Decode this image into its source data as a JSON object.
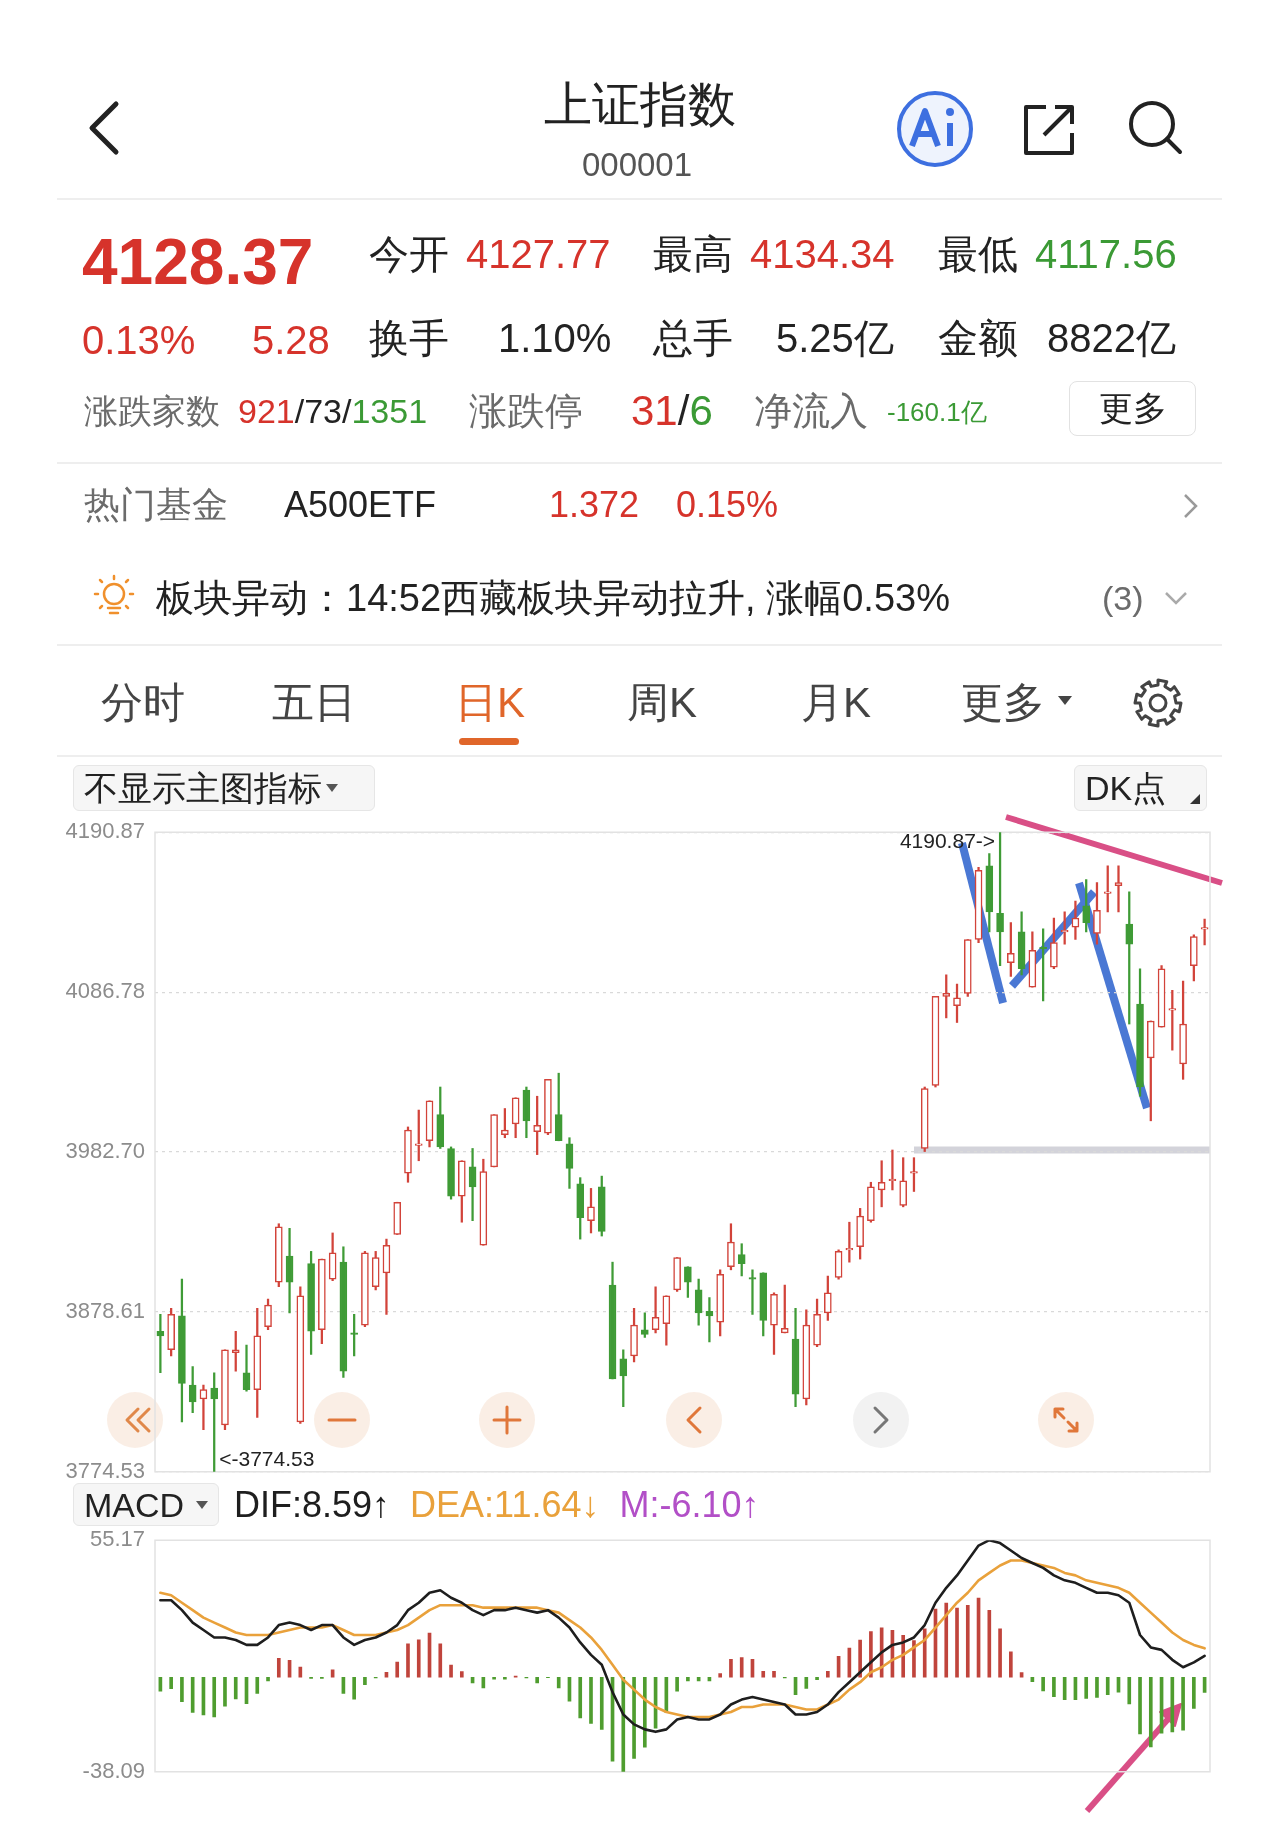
{
  "chart_data": [
    {
      "type": "other",
      "title": "上证指数",
      "subtitle": "000001",
      "annotations": [
        "4128.37",
        "0.13%",
        "5.28",
        "今开",
        "4127.77",
        "最高",
        "4134.34",
        "最低",
        "4117.56",
        "换手",
        "1.10%",
        "总手",
        "5.25亿",
        "金额",
        "8822亿",
        "涨跌家数",
        "921",
        "/73/",
        "1351",
        "涨跌停",
        "31",
        "/",
        "6",
        "净流入",
        "-160.1亿",
        "更多",
        "热门基金",
        "A500ETF",
        "1.372",
        "0.15%",
        "板块异动：14:52西藏板块异动拉升, 涨幅0.53%",
        "(3)",
        "分时",
        "五日",
        "日K",
        "周K",
        "月K",
        "更多"
      ]
    },
    {
      "type": "candlestick",
      "annotations": [
        "不显示主图指标",
        "DK点",
        "4190.87->",
        "<-3774.53"
      ],
      "categories": [
        null,
        null,
        null,
        null,
        null,
        null,
        null,
        null,
        null,
        null,
        null,
        null,
        null,
        null,
        null,
        null,
        null,
        null,
        null,
        null,
        null,
        null,
        null,
        null,
        null,
        null,
        null,
        null,
        null,
        null,
        null,
        null,
        null,
        null,
        null,
        null,
        null,
        null,
        null,
        null,
        null,
        null,
        null,
        null,
        null,
        null,
        null,
        null,
        null,
        null,
        null,
        null,
        null,
        null,
        null,
        null,
        null,
        null,
        null,
        null,
        null,
        null,
        null,
        null,
        null,
        null,
        null,
        null,
        null,
        null,
        null,
        null,
        null,
        null,
        null,
        null,
        null,
        null,
        null,
        null,
        null,
        null,
        null,
        null,
        null,
        null,
        null,
        null,
        null,
        null,
        null,
        null,
        null,
        null,
        null,
        null,
        null,
        null
      ],
      "ohlc": [
        [
          3866,
          3877,
          3839,
          3863
        ],
        [
          3854,
          3881,
          3850,
          3877
        ],
        [
          3876,
          3900,
          3807,
          3832
        ],
        [
          3831,
          3843,
          3813,
          3820
        ],
        [
          3822,
          3831,
          3802,
          3828
        ],
        [
          3829,
          3839,
          3774.53,
          3822
        ],
        [
          3805,
          3854,
          3802,
          3854
        ],
        [
          3852,
          3866,
          3840,
          3854
        ],
        [
          3839,
          3857,
          3827,
          3828
        ],
        [
          3828,
          3881,
          3810,
          3863
        ],
        [
          3869,
          3887,
          3867,
          3883
        ],
        [
          3898,
          3936,
          3895,
          3934
        ],
        [
          3915,
          3933,
          3878,
          3898
        ],
        [
          3807,
          3895,
          3806,
          3889
        ],
        [
          3910,
          3918,
          3851,
          3866
        ],
        [
          3867,
          3913,
          3858,
          3913
        ],
        [
          3900,
          3930,
          3899,
          3917
        ],
        [
          3911,
          3921,
          3836,
          3840
        ],
        [
          3865,
          3877,
          3850,
          3864
        ],
        [
          3870,
          3918,
          3869,
          3917
        ],
        [
          3895,
          3918,
          3893,
          3914
        ],
        [
          3904,
          3926,
          3877,
          3922
        ],
        [
          3929,
          3950,
          3929,
          3950
        ],
        [
          3969,
          3999,
          3963,
          3997
        ],
        [
          3987,
          4010,
          3977,
          3988
        ],
        [
          3990,
          4016,
          3986,
          4016
        ],
        [
          4007,
          4025,
          3985,
          3986
        ],
        [
          3985,
          3986,
          3952,
          3954
        ],
        [
          3954,
          3977,
          3937,
          3977
        ],
        [
          3973,
          3985,
          3938,
          3960
        ],
        [
          3922,
          3978,
          3922,
          3970
        ],
        [
          3973,
          4007,
          3973,
          4007
        ],
        [
          3994,
          4011,
          3992,
          3997
        ],
        [
          4001,
          4018,
          3992,
          4018
        ],
        [
          4023,
          4025,
          3992,
          4003
        ],
        [
          3996,
          4019,
          3981,
          4000
        ],
        [
          3995,
          4030,
          3994,
          4030
        ],
        [
          4007,
          4034,
          3990,
          3990
        ],
        [
          3988,
          3992,
          3959,
          3972
        ],
        [
          3962,
          3966,
          3926,
          3940
        ],
        [
          3938,
          3959,
          3930,
          3947
        ],
        [
          3960,
          3967,
          3928,
          3931
        ],
        [
          3896,
          3911,
          3835,
          3835
        ],
        [
          3848,
          3854,
          3817,
          3837
        ],
        [
          3850,
          3881,
          3846,
          3870
        ],
        [
          3867,
          3878,
          3862,
          3864
        ],
        [
          3867,
          3895,
          3865,
          3875
        ],
        [
          3871,
          3889,
          3857,
          3889
        ],
        [
          3893,
          3914,
          3892,
          3914
        ],
        [
          3908,
          3908,
          3888,
          3898
        ],
        [
          3893,
          3900,
          3870,
          3878
        ],
        [
          3879,
          3888,
          3859,
          3876
        ],
        [
          3872,
          3906,
          3863,
          3903
        ],
        [
          3908,
          3936,
          3906,
          3924
        ],
        [
          3916,
          3923,
          3902,
          3910
        ],
        [
          3901,
          3906,
          3877,
          3900
        ],
        [
          3904,
          3904,
          3863,
          3873
        ],
        [
          3870,
          3891,
          3851,
          3890
        ],
        [
          3865,
          3896,
          3865,
          3868
        ],
        [
          3861,
          3881,
          3817,
          3825
        ],
        [
          3822,
          3880,
          3818,
          3870
        ],
        [
          3857,
          3887,
          3856,
          3877
        ],
        [
          3878,
          3902,
          3873,
          3891
        ],
        [
          3901,
          3919,
          3900,
          3918
        ],
        [
          3919,
          3937,
          3911,
          3920
        ],
        [
          3921,
          3946,
          3913,
          3941
        ],
        [
          3938,
          3963,
          3937,
          3960
        ],
        [
          3958,
          3977,
          3947,
          3963
        ],
        [
          3964,
          3984,
          3958,
          3965
        ],
        [
          3948,
          3979,
          3947,
          3964
        ],
        [
          3969,
          3979,
          3957,
          3970
        ],
        [
          3985,
          4025,
          3983,
          4024
        ],
        [
          4026,
          4084,
          4025,
          4084
        ],
        [
          4084,
          4098,
          4070,
          4086
        ],
        [
          4078,
          4092,
          4067,
          4083
        ],
        [
          4086,
          4121,
          4084,
          4121
        ],
        [
          4121,
          4168,
          4119,
          4166
        ],
        [
          4169,
          4177,
          4126,
          4139
        ],
        [
          4138,
          4190.87,
          4104,
          4126
        ],
        [
          4106,
          4132,
          4097,
          4112
        ],
        [
          4126,
          4139,
          4098,
          4102
        ],
        [
          4090,
          4126,
          4090,
          4114
        ],
        [
          4116,
          4128,
          4081,
          4115
        ],
        [
          4103,
          4135,
          4102,
          4119
        ],
        [
          4126,
          4139,
          4118,
          4127
        ],
        [
          4129,
          4146,
          4121,
          4135
        ],
        [
          4143,
          4160,
          4126,
          4132
        ],
        [
          4125,
          4158,
          4118,
          4140
        ],
        [
          4151,
          4169,
          4139,
          4152
        ],
        [
          4156,
          4169,
          4139,
          4158
        ],
        [
          4131,
          4152,
          4066,
          4118
        ],
        [
          4079,
          4102,
          4019,
          4025
        ],
        [
          4044,
          4068,
          4003,
          4068
        ],
        [
          4064,
          4104,
          4064,
          4102
        ],
        [
          4075,
          4088,
          4049,
          4076
        ],
        [
          4040,
          4094,
          4030,
          4066
        ],
        [
          4104,
          4124,
          4094,
          4123
        ],
        [
          4127.77,
          4134.34,
          4117.56,
          4128.37
        ]
      ],
      "colors": [
        "#3f9b36",
        "#d2433a",
        "#3f9b36",
        "#3f9b36",
        "#d2433a",
        "#3f9b36",
        "#d2433a",
        "#d2433a",
        "#3f9b36",
        "#d2433a",
        "#d2433a",
        "#d2433a",
        "#3f9b36",
        "#d2433a",
        "#3f9b36",
        "#d2433a",
        "#d2433a",
        "#3f9b36",
        "#3f9b36",
        "#d2433a",
        "#d2433a",
        "#d2433a",
        "#d2433a",
        "#d2433a",
        "#d2433a",
        "#d2433a",
        "#3f9b36",
        "#3f9b36",
        "#d2433a",
        "#3f9b36",
        "#d2433a",
        "#d2433a",
        "#d2433a",
        "#d2433a",
        "#3f9b36",
        "#d2433a",
        "#d2433a",
        "#3f9b36",
        "#3f9b36",
        "#3f9b36",
        "#d2433a",
        "#3f9b36",
        "#3f9b36",
        "#3f9b36",
        "#d2433a",
        "#3f9b36",
        "#d2433a",
        "#d2433a",
        "#d2433a",
        "#3f9b36",
        "#3f9b36",
        "#3f9b36",
        "#d2433a",
        "#d2433a",
        "#3f9b36",
        "#3f9b36",
        "#3f9b36",
        "#d2433a",
        "#d2433a",
        "#3f9b36",
        "#d2433a",
        "#d2433a",
        "#d2433a",
        "#d2433a",
        "#d2433a",
        "#d2433a",
        "#d2433a",
        "#d2433a",
        "#d2433a",
        "#d2433a",
        "#d2433a",
        "#d2433a",
        "#d2433a",
        "#d2433a",
        "#d2433a",
        "#d2433a",
        "#d2433a",
        "#3f9b36",
        "#3f9b36",
        "#d2433a",
        "#3f9b36",
        "#d2433a",
        "#3f9b36",
        "#d2433a",
        "#d2433a",
        "#d2433a",
        "#3f9b36",
        "#d2433a",
        "#d2433a",
        "#d2433a",
        "#3f9b36",
        "#3f9b36",
        "#d2433a",
        "#d2433a",
        "#d2433a",
        "#d2433a",
        "#d2433a",
        "#d2433a"
      ],
      "ylim": [
        3774.53,
        4190.87
      ],
      "yticks": [
        3774.53,
        3878.61,
        {
          "value": 3982.7,
          "label": "3982.70"
        },
        4086.78,
        4190.87
      ],
      "grid": "y",
      "tick_labels": "y"
    },
    {
      "type": "bar",
      "title": "MACD",
      "annotations": [
        "M:-6.10↑"
      ],
      "categories": [
        null,
        null,
        null,
        null,
        null,
        null,
        null,
        null,
        null,
        null,
        null,
        null,
        null,
        null,
        null,
        null,
        null,
        null,
        null,
        null,
        null,
        null,
        null,
        null,
        null,
        null,
        null,
        null,
        null,
        null,
        null,
        null,
        null,
        null,
        null,
        null,
        null,
        null,
        null,
        null,
        null,
        null,
        null,
        null,
        null,
        null,
        null,
        null,
        null,
        null,
        null,
        null,
        null,
        null,
        null,
        null,
        null,
        null,
        null,
        null,
        null,
        null,
        null,
        null,
        null,
        null,
        null,
        null,
        null,
        null,
        null,
        null,
        null,
        null,
        null,
        null,
        null,
        null,
        null,
        null,
        null,
        null,
        null,
        null,
        null,
        null,
        null,
        null,
        null,
        null,
        null,
        null,
        null,
        null,
        null,
        null,
        null,
        null
      ],
      "series": [
        {
          "name": "DIF:8.59↑",
          "type": "line",
          "color": "#1e1e1e",
          "values": [
            31,
            31,
            27,
            22,
            19,
            16,
            16,
            15,
            13,
            13,
            16,
            21,
            22,
            21,
            19,
            21,
            21,
            16,
            13,
            15,
            16,
            18,
            21,
            27,
            30,
            34,
            35,
            32,
            30,
            27,
            25,
            27,
            27,
            28,
            27,
            26,
            27,
            24,
            20,
            14,
            9,
            5,
            -6,
            -15,
            -19,
            -21,
            -22,
            -21,
            -17,
            -16,
            -17,
            -17,
            -15,
            -11,
            -9,
            -8,
            -9,
            -10,
            -11,
            -15,
            -15,
            -14,
            -11,
            -6,
            -2,
            2,
            6,
            10,
            13,
            14,
            16,
            21,
            30,
            36,
            41,
            47,
            53,
            55.17,
            54,
            51,
            48,
            46,
            44,
            41,
            39,
            38,
            36,
            34,
            34,
            33,
            30,
            17,
            12,
            11,
            7,
            4,
            6,
            8.59
          ]
        },
        {
          "name": "DEA:11.64↓",
          "type": "line",
          "color": "#e9a13b",
          "values": [
            34,
            33,
            30,
            27,
            24,
            22,
            20,
            18,
            17,
            17,
            17,
            18,
            19,
            20,
            20,
            20,
            21,
            19,
            17,
            17,
            17,
            18,
            19,
            21,
            24,
            27,
            29,
            29,
            29,
            29,
            28,
            28,
            28,
            28,
            28,
            28,
            27,
            26,
            23,
            20,
            16,
            11,
            5,
            -1,
            -5,
            -9,
            -12,
            -14,
            -15,
            -16,
            -16,
            -16,
            -15,
            -14,
            -12,
            -12,
            -11,
            -11,
            -11,
            -12,
            -13,
            -13,
            -11,
            -9,
            -5,
            -2,
            2,
            4,
            7,
            9,
            12,
            15,
            20,
            25,
            30,
            34,
            39,
            42,
            45,
            47,
            47,
            46,
            45,
            44,
            42,
            41,
            39,
            38,
            37,
            36,
            34,
            30,
            26,
            22,
            18,
            15,
            13,
            11.64
          ]
        },
        {
          "type": "bar",
          "values": [
            -5.6,
            -4.6,
            -9.9,
            -14.2,
            -15.2,
            -16.0,
            -11.7,
            -8.7,
            -10.7,
            -6.5,
            -1.5,
            7.6,
            6.8,
            4.1,
            -0.5,
            -0.5,
            3.0,
            -6.5,
            -8.8,
            -3.0,
            -0.3,
            2.0,
            6.1,
            13.4,
            15.1,
            17.8,
            13.4,
            4.9,
            2.3,
            -2.3,
            -4.3,
            -0.8,
            -0.8,
            0.5,
            -0.3,
            -2.3,
            -0.2,
            -4.3,
            -9.6,
            -16.4,
            -18.6,
            -21.0,
            -33.8,
            -38.09,
            -32.7,
            -28.2,
            -20.5,
            -14.2,
            -5.6,
            -1.5,
            -1.5,
            -1.5,
            1.5,
            7.2,
            7.9,
            7.2,
            2.4,
            2.4,
            -0.3,
            -7.0,
            -4.5,
            -1.0,
            2.4,
            8.4,
            11.7,
            15.0,
            18.4,
            19.9,
            18.9,
            16.9,
            14.7,
            19.5,
            27.4,
            29.9,
            27.8,
            28.9,
            31.9,
            26.9,
            19.5,
            10.2,
            1.9,
            -1.8,
            -5.5,
            -7.8,
            -9.0,
            -9.0,
            -8.5,
            -8.1,
            -7.0,
            -6.0,
            -10.8,
            -22.8,
            -28.1,
            -22.5,
            -22.0,
            -21.3,
            -12.6,
            -6.1
          ],
          "colors": [
            "#4f9d2f",
            "#4f9d2f",
            "#4f9d2f",
            "#4f9d2f",
            "#4f9d2f",
            "#4f9d2f",
            "#4f9d2f",
            "#4f9d2f",
            "#4f9d2f",
            "#4f9d2f",
            "#4f9d2f",
            "#c0443c",
            "#c0443c",
            "#c0443c",
            "#4f9d2f",
            "#4f9d2f",
            "#c0443c",
            "#4f9d2f",
            "#4f9d2f",
            "#4f9d2f",
            "#4f9d2f",
            "#c0443c",
            "#c0443c",
            "#c0443c",
            "#c0443c",
            "#c0443c",
            "#c0443c",
            "#c0443c",
            "#c0443c",
            "#4f9d2f",
            "#4f9d2f",
            "#4f9d2f",
            "#4f9d2f",
            "#c0443c",
            "#4f9d2f",
            "#4f9d2f",
            "#4f9d2f",
            "#4f9d2f",
            "#4f9d2f",
            "#4f9d2f",
            "#4f9d2f",
            "#4f9d2f",
            "#4f9d2f",
            "#4f9d2f",
            "#4f9d2f",
            "#4f9d2f",
            "#4f9d2f",
            "#4f9d2f",
            "#4f9d2f",
            "#4f9d2f",
            "#4f9d2f",
            "#4f9d2f",
            "#c0443c",
            "#c0443c",
            "#c0443c",
            "#c0443c",
            "#c0443c",
            "#c0443c",
            "#4f9d2f",
            "#4f9d2f",
            "#4f9d2f",
            "#4f9d2f",
            "#c0443c",
            "#c0443c",
            "#c0443c",
            "#c0443c",
            "#c0443c",
            "#c0443c",
            "#c0443c",
            "#c0443c",
            "#c0443c",
            "#c0443c",
            "#c0443c",
            "#c0443c",
            "#c0443c",
            "#c0443c",
            "#c0443c",
            "#c0443c",
            "#c0443c",
            "#c0443c",
            "#c0443c",
            "#4f9d2f",
            "#4f9d2f",
            "#4f9d2f",
            "#4f9d2f",
            "#4f9d2f",
            "#4f9d2f",
            "#4f9d2f",
            "#4f9d2f",
            "#4f9d2f",
            "#4f9d2f",
            "#4f9d2f",
            "#4f9d2f",
            "#4f9d2f",
            "#4f9d2f",
            "#4f9d2f",
            "#4f9d2f",
            "#4f9d2f"
          ]
        }
      ],
      "ylim": [
        -38.09,
        55.17
      ],
      "yticks": [
        -38.09,
        55.17
      ],
      "tick_labels": "y",
      "legend": "top left",
      "marker": "none"
    }
  ]
}
